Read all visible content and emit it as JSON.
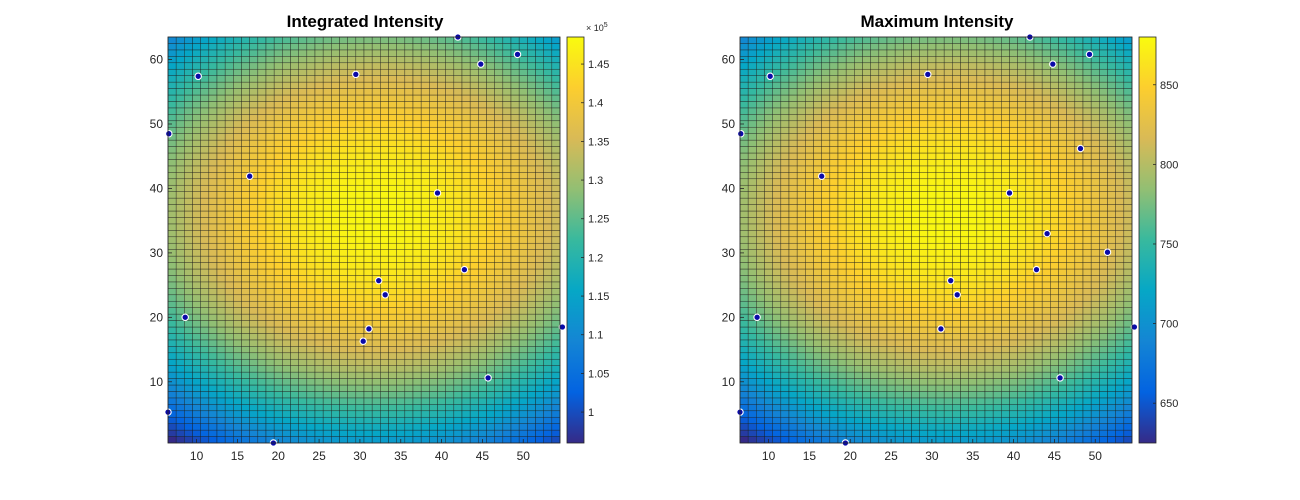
{
  "chart_data": [
    {
      "type": "heatmap",
      "title": "Integrated Intensity",
      "xlim": [
        6.5,
        54.5
      ],
      "ylim": [
        0.5,
        63.5
      ],
      "x_ticks": [
        10,
        15,
        20,
        25,
        30,
        35,
        40,
        45,
        50
      ],
      "y_ticks": [
        10,
        20,
        30,
        40,
        50,
        60
      ],
      "x_tick_labels": [
        "10",
        "15",
        "20",
        "25",
        "30",
        "35",
        "40",
        "45",
        "50"
      ],
      "y_tick_labels": [
        "10",
        "20",
        "30",
        "40",
        "50",
        "60"
      ],
      "grid_size": {
        "cols": 48,
        "rows": 63
      },
      "surface": {
        "center_x": 32,
        "center_y": 36,
        "peak": 148000,
        "min_corner": 96000
      },
      "colormap": "parula",
      "colorbar": {
        "range": [
          96000,
          148500
        ],
        "multiplier_label": "× 10",
        "exponent_label": "5",
        "ticks": [
          100000,
          105000,
          110000,
          115000,
          120000,
          125000,
          130000,
          135000,
          140000,
          145000
        ],
        "tick_labels": [
          "1",
          "1.05",
          "1.1",
          "1.15",
          "1.2",
          "1.25",
          "1.3",
          "1.35",
          "1.4",
          "1.45"
        ]
      },
      "points": [
        {
          "x": 10.2,
          "y": 57.4
        },
        {
          "x": 29.5,
          "y": 57.7
        },
        {
          "x": 44.8,
          "y": 59.3
        },
        {
          "x": 49.3,
          "y": 60.8
        },
        {
          "x": 42,
          "y": 63.5
        },
        {
          "x": 6.6,
          "y": 48.5
        },
        {
          "x": 16.5,
          "y": 41.9
        },
        {
          "x": 39.5,
          "y": 39.3
        },
        {
          "x": 42.8,
          "y": 27.4
        },
        {
          "x": 32.3,
          "y": 25.7
        },
        {
          "x": 33.1,
          "y": 23.5
        },
        {
          "x": 8.6,
          "y": 20
        },
        {
          "x": 31.1,
          "y": 18.2
        },
        {
          "x": 30.4,
          "y": 16.3
        },
        {
          "x": 45.7,
          "y": 10.6
        },
        {
          "x": 54.8,
          "y": 18.5
        },
        {
          "x": 6.5,
          "y": 5.3
        },
        {
          "x": 19.4,
          "y": 0.5
        }
      ]
    },
    {
      "type": "heatmap",
      "title": "Maximum Intensity",
      "xlim": [
        6.5,
        54.5
      ],
      "ylim": [
        0.5,
        63.5
      ],
      "x_ticks": [
        10,
        15,
        20,
        25,
        30,
        35,
        40,
        45,
        50
      ],
      "y_ticks": [
        10,
        20,
        30,
        40,
        50,
        60
      ],
      "x_tick_labels": [
        "10",
        "15",
        "20",
        "25",
        "30",
        "35",
        "40",
        "45",
        "50"
      ],
      "y_tick_labels": [
        "10",
        "20",
        "30",
        "40",
        "50",
        "60"
      ],
      "grid_size": {
        "cols": 48,
        "rows": 63
      },
      "surface": {
        "center_x": 32,
        "center_y": 36,
        "peak": 878,
        "min_corner": 625
      },
      "colormap": "parula",
      "colorbar": {
        "range": [
          625,
          880
        ],
        "multiplier_label": "",
        "exponent_label": "",
        "ticks": [
          650,
          700,
          750,
          800,
          850
        ],
        "tick_labels": [
          "650",
          "700",
          "750",
          "800",
          "850"
        ]
      },
      "points": [
        {
          "x": 10.2,
          "y": 57.4
        },
        {
          "x": 29.5,
          "y": 57.7
        },
        {
          "x": 44.8,
          "y": 59.3
        },
        {
          "x": 49.3,
          "y": 60.8
        },
        {
          "x": 42,
          "y": 63.5
        },
        {
          "x": 6.6,
          "y": 48.5
        },
        {
          "x": 48.2,
          "y": 46.2
        },
        {
          "x": 16.5,
          "y": 41.9
        },
        {
          "x": 39.5,
          "y": 39.3
        },
        {
          "x": 44.1,
          "y": 33
        },
        {
          "x": 51.5,
          "y": 30.1
        },
        {
          "x": 42.8,
          "y": 27.4
        },
        {
          "x": 32.3,
          "y": 25.7
        },
        {
          "x": 33.1,
          "y": 23.5
        },
        {
          "x": 8.6,
          "y": 20
        },
        {
          "x": 31.1,
          "y": 18.2
        },
        {
          "x": 45.7,
          "y": 10.6
        },
        {
          "x": 54.8,
          "y": 18.5
        },
        {
          "x": 6.5,
          "y": 5.3
        },
        {
          "x": 19.4,
          "y": 0.5
        }
      ]
    }
  ]
}
